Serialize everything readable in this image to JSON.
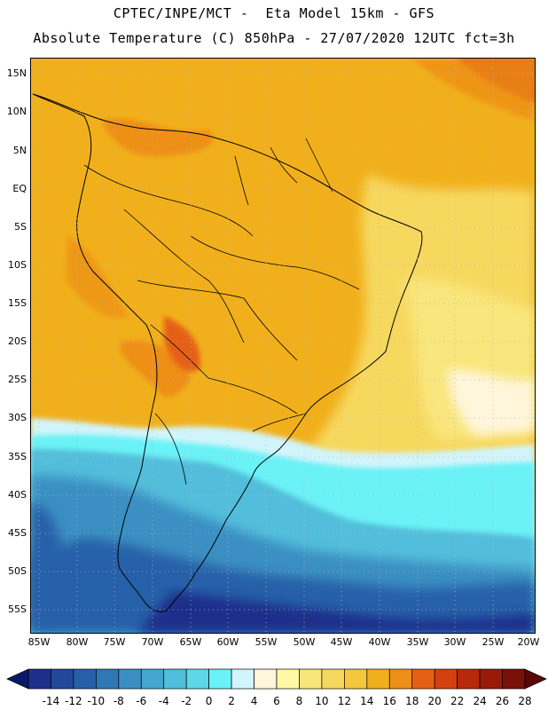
{
  "header": {
    "title_line1": "CPTEC/INPE/MCT -  Eta Model 15km - GFS",
    "title_line2": "Absolute Temperature (C) 850hPa - 27/07/2020 12UTC fct=3h"
  },
  "map": {
    "lat_labels": [
      "15N",
      "10N",
      "5N",
      "EQ",
      "5S",
      "10S",
      "15S",
      "20S",
      "25S",
      "30S",
      "35S",
      "40S",
      "45S",
      "50S",
      "55S"
    ],
    "lon_labels": [
      "85W",
      "80W",
      "75W",
      "70W",
      "65W",
      "60W",
      "55W",
      "50W",
      "45W",
      "40W",
      "35W",
      "30W",
      "25W",
      "20W"
    ],
    "grid": "dotted"
  },
  "colorbar": {
    "labels": [
      "-14",
      "-12",
      "-10",
      "-8",
      "-6",
      "-4",
      "-2",
      "0",
      "2",
      "4",
      "6",
      "8",
      "10",
      "12",
      "14",
      "16",
      "18",
      "20",
      "22",
      "24",
      "26",
      "28"
    ],
    "colors": [
      "#1d2f8a",
      "#23489a",
      "#2860a8",
      "#2f78b6",
      "#3a8fc2",
      "#45a6cf",
      "#52bedb",
      "#5ed8e8",
      "#6bf2f6",
      "#d2f5fb",
      "#fff6dc",
      "#fef9a5",
      "#f9e67b",
      "#f7d85e",
      "#f4c73d",
      "#f1b01b",
      "#ee8f19",
      "#e56012",
      "#d4410e",
      "#b8290c",
      "#9a1a0a",
      "#7a1108"
    ]
  }
}
